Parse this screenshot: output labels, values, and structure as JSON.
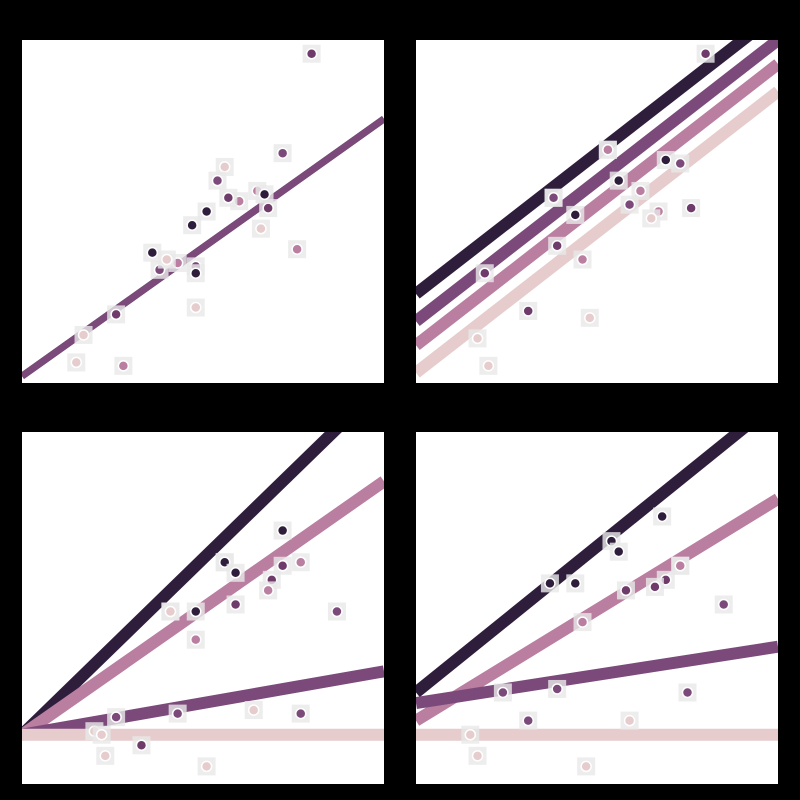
{
  "chart_data": [
    {
      "type": "scatter",
      "title": "",
      "xlim": [
        0,
        10
      ],
      "ylim": [
        0,
        10
      ],
      "grid": false,
      "points": [
        {
          "x": 8.0,
          "y": 9.6,
          "g": 2
        },
        {
          "x": 7.2,
          "y": 6.7,
          "g": 1
        },
        {
          "x": 6.0,
          "y": 5.3,
          "g": 3
        },
        {
          "x": 5.6,
          "y": 6.3,
          "g": 4
        },
        {
          "x": 4.7,
          "y": 4.6,
          "g": 0
        },
        {
          "x": 4.3,
          "y": 3.5,
          "g": 3
        },
        {
          "x": 5.4,
          "y": 5.9,
          "g": 1
        },
        {
          "x": 6.5,
          "y": 5.6,
          "g": 3
        },
        {
          "x": 6.8,
          "y": 5.1,
          "g": 2
        },
        {
          "x": 3.8,
          "y": 3.3,
          "g": 1
        },
        {
          "x": 2.6,
          "y": 2.0,
          "g": 2
        },
        {
          "x": 1.7,
          "y": 1.4,
          "g": 4
        },
        {
          "x": 2.8,
          "y": 0.5,
          "g": 3
        },
        {
          "x": 1.5,
          "y": 0.6,
          "g": 4
        },
        {
          "x": 4.0,
          "y": 3.6,
          "g": 4
        },
        {
          "x": 4.8,
          "y": 2.2,
          "g": 4
        },
        {
          "x": 6.6,
          "y": 4.5,
          "g": 4
        },
        {
          "x": 7.6,
          "y": 3.9,
          "g": 3
        },
        {
          "x": 4.8,
          "y": 3.4,
          "g": 1
        },
        {
          "x": 3.6,
          "y": 3.8,
          "g": 0
        },
        {
          "x": 4.8,
          "y": 3.2,
          "g": 0
        },
        {
          "x": 5.7,
          "y": 5.4,
          "g": 2
        },
        {
          "x": 5.1,
          "y": 5.0,
          "g": 0
        },
        {
          "x": 6.7,
          "y": 5.5,
          "g": 0
        }
      ],
      "fits": [
        {
          "g": 1,
          "intercept": 0.2,
          "slope": 0.75,
          "color": "#2e1e3c"
        },
        {
          "g": 2,
          "intercept": 0.2,
          "slope": 0.75,
          "color": "#7b4a7a"
        }
      ]
    },
    {
      "type": "scatter",
      "title": "",
      "xlim": [
        0,
        10
      ],
      "ylim": [
        0,
        10
      ],
      "grid": false,
      "points": [
        {
          "x": 8.0,
          "y": 9.6,
          "g": 2
        },
        {
          "x": 5.3,
          "y": 6.8,
          "g": 4
        },
        {
          "x": 5.3,
          "y": 6.8,
          "g": 3
        },
        {
          "x": 6.9,
          "y": 6.5,
          "g": 0
        },
        {
          "x": 5.6,
          "y": 5.9,
          "g": 0
        },
        {
          "x": 3.8,
          "y": 5.4,
          "g": 4
        },
        {
          "x": 3.8,
          "y": 5.4,
          "g": 1
        },
        {
          "x": 4.4,
          "y": 4.9,
          "g": 0
        },
        {
          "x": 6.2,
          "y": 5.6,
          "g": 3
        },
        {
          "x": 5.9,
          "y": 5.2,
          "g": 1
        },
        {
          "x": 6.7,
          "y": 5.0,
          "g": 3
        },
        {
          "x": 3.9,
          "y": 4.0,
          "g": 2
        },
        {
          "x": 1.9,
          "y": 3.2,
          "g": 2
        },
        {
          "x": 4.6,
          "y": 3.6,
          "g": 3
        },
        {
          "x": 3.1,
          "y": 2.1,
          "g": 2
        },
        {
          "x": 4.8,
          "y": 1.9,
          "g": 4
        },
        {
          "x": 1.7,
          "y": 1.3,
          "g": 4
        },
        {
          "x": 2.0,
          "y": 0.5,
          "g": 4
        },
        {
          "x": 7.6,
          "y": 5.1,
          "g": 2
        },
        {
          "x": 6.5,
          "y": 4.8,
          "g": 4
        },
        {
          "x": 7.3,
          "y": 6.4,
          "g": 1
        }
      ],
      "fits": [
        {
          "g": 0,
          "intercept": 2.6,
          "slope": 0.82,
          "color": "#2e1e3c"
        },
        {
          "g": 1,
          "intercept": 1.8,
          "slope": 0.82,
          "color": "#7b4a7a"
        },
        {
          "g": 2,
          "intercept": 1.1,
          "slope": 0.82,
          "color": "#b97ea0"
        },
        {
          "g": 3,
          "intercept": 0.3,
          "slope": 0.82,
          "color": "#e6cccc"
        }
      ]
    },
    {
      "type": "scatter",
      "title": "",
      "xlim": [
        0,
        10
      ],
      "ylim": [
        0,
        10
      ],
      "grid": false,
      "points": [
        {
          "x": 7.2,
          "y": 7.2,
          "g": 0
        },
        {
          "x": 5.6,
          "y": 6.3,
          "g": 4
        },
        {
          "x": 5.6,
          "y": 6.3,
          "g": 0
        },
        {
          "x": 5.9,
          "y": 6.0,
          "g": 0
        },
        {
          "x": 7.7,
          "y": 6.3,
          "g": 3
        },
        {
          "x": 7.2,
          "y": 6.2,
          "g": 2
        },
        {
          "x": 6.9,
          "y": 5.8,
          "g": 2
        },
        {
          "x": 5.9,
          "y": 5.1,
          "g": 2
        },
        {
          "x": 6.8,
          "y": 5.5,
          "g": 3
        },
        {
          "x": 4.1,
          "y": 4.9,
          "g": 0
        },
        {
          "x": 4.1,
          "y": 4.9,
          "g": 4
        },
        {
          "x": 4.8,
          "y": 4.9,
          "g": 0
        },
        {
          "x": 4.8,
          "y": 4.1,
          "g": 3
        },
        {
          "x": 8.7,
          "y": 4.9,
          "g": 1
        },
        {
          "x": 2.6,
          "y": 1.9,
          "g": 1
        },
        {
          "x": 4.3,
          "y": 2.0,
          "g": 1
        },
        {
          "x": 6.4,
          "y": 2.1,
          "g": 4
        },
        {
          "x": 7.7,
          "y": 2.0,
          "g": 1
        },
        {
          "x": 2.0,
          "y": 1.5,
          "g": 4
        },
        {
          "x": 2.2,
          "y": 1.4,
          "g": 4
        },
        {
          "x": 3.3,
          "y": 1.1,
          "g": 2
        },
        {
          "x": 2.3,
          "y": 0.8,
          "g": 4
        },
        {
          "x": 5.1,
          "y": 0.5,
          "g": 4
        }
      ],
      "fits": [
        {
          "g": 0,
          "x0": 0,
          "y0": 1.4,
          "slope": 1.0,
          "color": "#2e1e3c"
        },
        {
          "g": 2,
          "x0": 0,
          "y0": 1.4,
          "slope": 0.72,
          "color": "#b97ea0"
        },
        {
          "g": 1,
          "x0": 0,
          "y0": 1.4,
          "slope": 0.18,
          "color": "#7b4a7a"
        },
        {
          "g": 3,
          "x0": 0,
          "y0": 1.4,
          "slope": 0.0,
          "color": "#e6cccc"
        }
      ]
    },
    {
      "type": "scatter",
      "title": "",
      "xlim": [
        0,
        10
      ],
      "ylim": [
        0,
        10
      ],
      "grid": false,
      "points": [
        {
          "x": 6.8,
          "y": 7.6,
          "g": 0
        },
        {
          "x": 5.4,
          "y": 6.9,
          "g": 0
        },
        {
          "x": 5.6,
          "y": 6.6,
          "g": 0
        },
        {
          "x": 7.3,
          "y": 6.2,
          "g": 4
        },
        {
          "x": 7.3,
          "y": 6.2,
          "g": 3
        },
        {
          "x": 6.9,
          "y": 5.8,
          "g": 2
        },
        {
          "x": 6.6,
          "y": 5.6,
          "g": 2
        },
        {
          "x": 5.8,
          "y": 5.5,
          "g": 2
        },
        {
          "x": 3.7,
          "y": 5.7,
          "g": 0
        },
        {
          "x": 4.4,
          "y": 5.7,
          "g": 0
        },
        {
          "x": 8.5,
          "y": 5.1,
          "g": 1
        },
        {
          "x": 4.6,
          "y": 4.6,
          "g": 3
        },
        {
          "x": 2.4,
          "y": 2.6,
          "g": 1
        },
        {
          "x": 3.9,
          "y": 2.7,
          "g": 1
        },
        {
          "x": 7.5,
          "y": 2.6,
          "g": 1
        },
        {
          "x": 3.1,
          "y": 1.8,
          "g": 1
        },
        {
          "x": 5.9,
          "y": 1.8,
          "g": 4
        },
        {
          "x": 1.5,
          "y": 1.4,
          "g": 4
        },
        {
          "x": 1.7,
          "y": 0.8,
          "g": 4
        },
        {
          "x": 4.7,
          "y": 0.5,
          "g": 4
        }
      ],
      "fits": [
        {
          "g": 0,
          "intercept": 2.6,
          "slope": 0.83,
          "color": "#2e1e3c"
        },
        {
          "g": 2,
          "intercept": 1.8,
          "slope": 0.63,
          "color": "#b97ea0"
        },
        {
          "g": 1,
          "intercept": 2.3,
          "slope": 0.16,
          "color": "#7b4a7a"
        },
        {
          "g": 3,
          "intercept": 1.4,
          "slope": 0.0,
          "color": "#e6cccc"
        }
      ]
    }
  ],
  "palette": [
    "#2e1e3c",
    "#7b4a7a",
    "#6e3b6b",
    "#b97ea0",
    "#e6cccc"
  ]
}
